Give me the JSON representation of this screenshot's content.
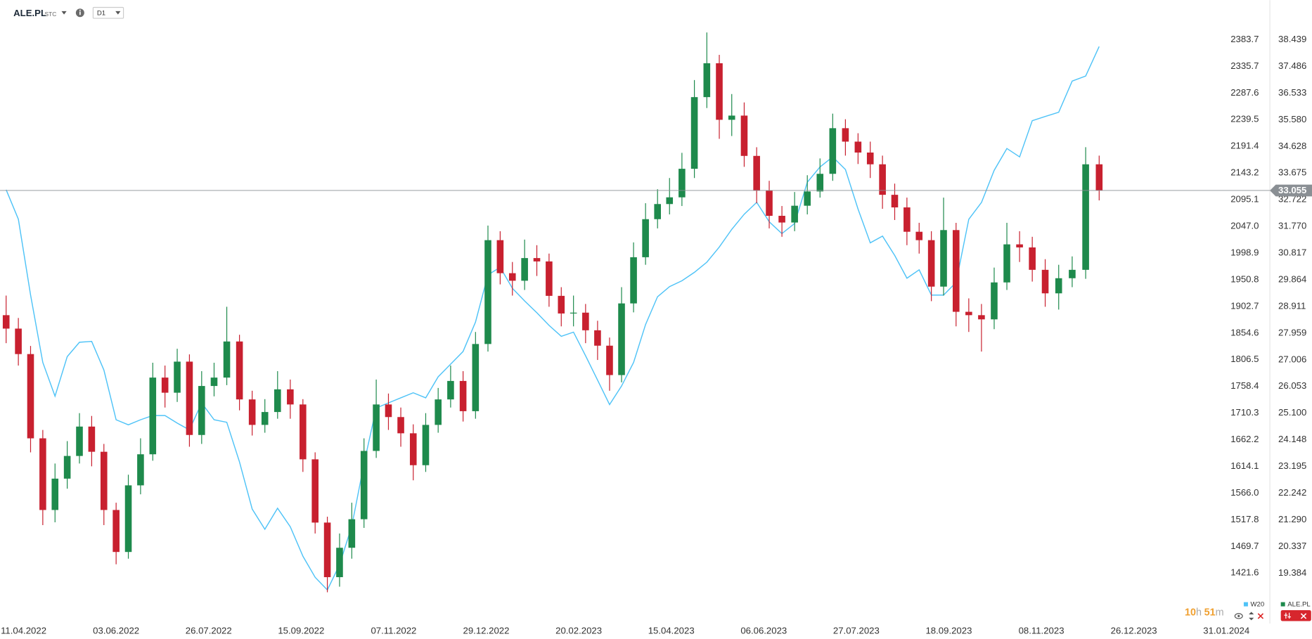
{
  "header": {
    "symbol": "ALE.PL",
    "market": "STC",
    "interval": "D1"
  },
  "countdown": [
    {
      "value": "10",
      "unit": "h"
    },
    {
      "value": "51",
      "unit": "m"
    }
  ],
  "chart_data": {
    "type": "candlestick",
    "x": [
      "01.04.2022",
      "08.04.2022",
      "15.04.2022",
      "22.04.2022",
      "29.04.2022",
      "06.05.2022",
      "13.05.2022",
      "20.05.2022",
      "27.05.2022",
      "03.06.2022",
      "10.06.2022",
      "17.06.2022",
      "24.06.2022",
      "01.07.2022",
      "08.07.2022",
      "15.07.2022",
      "22.07.2022",
      "29.07.2022",
      "05.08.2022",
      "12.08.2022",
      "19.08.2022",
      "26.08.2022",
      "02.09.2022",
      "09.09.2022",
      "16.09.2022",
      "23.09.2022",
      "30.09.2022",
      "07.10.2022",
      "14.10.2022",
      "21.10.2022",
      "28.10.2022",
      "04.11.2022",
      "11.11.2022",
      "18.11.2022",
      "25.11.2022",
      "02.12.2022",
      "09.12.2022",
      "16.12.2022",
      "23.12.2022",
      "30.12.2022",
      "06.01.2023",
      "13.01.2023",
      "20.01.2023",
      "27.01.2023",
      "03.02.2023",
      "10.02.2023",
      "17.02.2023",
      "24.02.2023",
      "03.03.2023",
      "10.03.2023",
      "17.03.2023",
      "24.03.2023",
      "31.03.2023",
      "07.04.2023",
      "14.04.2023",
      "21.04.2023",
      "28.04.2023",
      "05.05.2023",
      "12.05.2023",
      "19.05.2023",
      "26.05.2023",
      "02.06.2023",
      "09.06.2023",
      "16.06.2023",
      "23.06.2023",
      "30.06.2023",
      "07.07.2023",
      "14.07.2023",
      "21.07.2023",
      "28.07.2023",
      "04.08.2023",
      "11.08.2023",
      "18.08.2023",
      "25.08.2023",
      "01.09.2023",
      "08.09.2023",
      "15.09.2023",
      "22.09.2023",
      "29.09.2023",
      "06.10.2023",
      "13.10.2023",
      "20.10.2023",
      "27.10.2023",
      "03.11.2023",
      "10.11.2023",
      "17.11.2023",
      "24.11.2023",
      "01.12.2023",
      "08.12.2023"
    ],
    "xticks": [
      "11.04.2022",
      "03.06.2022",
      "26.07.2022",
      "15.09.2022",
      "07.11.2022",
      "29.12.2022",
      "20.02.2023",
      "15.04.2023",
      "06.06.2023",
      "27.07.2023",
      "18.09.2023",
      "08.11.2023",
      "26.12.2023",
      "31.01.2024"
    ],
    "ylim": [
      17.73,
      39.01
    ],
    "yticks": [
      38.439,
      37.486,
      36.533,
      {
        "value": 35.58,
        "label": "35.580"
      },
      34.628,
      33.675,
      32.722,
      {
        "value": 31.77,
        "label": "31.770"
      },
      30.817,
      29.864,
      28.911,
      27.959,
      27.006,
      26.053,
      {
        "value": 25.1,
        "label": "25.100"
      },
      24.148,
      23.195,
      22.242,
      {
        "value": 21.29,
        "label": "21.290"
      },
      20.337,
      19.384
    ],
    "y2lim": [
      1338.0,
      2412.5
    ],
    "y2ticks": [
      2383.7,
      2335.7,
      2287.6,
      2239.5,
      2191.4,
      2143.2,
      2095.1,
      {
        "value": 2047,
        "label": "2047.0"
      },
      1998.9,
      1950.8,
      1902.7,
      1854.6,
      1806.5,
      1758.4,
      1710.3,
      1662.2,
      1614.1,
      {
        "value": 1566,
        "label": "1566.0"
      },
      1517.8,
      1469.7,
      1421.6
    ],
    "last_price": 33.055,
    "last_price_color": "#8a8f94",
    "series": [
      {
        "name": "W20",
        "type": "line",
        "axis": "y2",
        "color": "#4fc3f7",
        "values": [
          2113.1,
          2059.9,
          1923.1,
          1801.5,
          1740.7,
          1812.2,
          1838.0,
          1839.5,
          1787.8,
          1698.2,
          1689.1,
          1698.2,
          1705.8,
          1705.8,
          1692.1,
          1679.9,
          1728.6,
          1698.2,
          1693.6,
          1622.2,
          1537.1,
          1500.6,
          1538.6,
          1505.2,
          1452.0,
          1414.0,
          1391.2,
          1436.8,
          1506.7,
          1619.1,
          1719.4,
          1728.6,
          1737.7,
          1746.8,
          1737.7,
          1775.7,
          1798.5,
          1821.3,
          1874.5,
          1959.6,
          1973.3,
          1935.3,
          1912.5,
          1891.2,
          1868.4,
          1848.6,
          1856.2,
          1813.7,
          1769.6,
          1725.5,
          1759.0,
          1801.5,
          1869.9,
          1920.1,
          1938.3,
          1948.9,
          1964.1,
          1982.4,
          2009.7,
          2041.6,
          2069.0,
          2090.3,
          2055.3,
          2034.0,
          2052.3,
          2126.8,
          2154.1,
          2172.3,
          2149.6,
          2078.1,
          2017.3,
          2029.5,
          1994.5,
          1953.5,
          1968.7,
          1923.1,
          1923.1,
          1945.9,
          2059.9,
          2090.3,
          2148.0,
          2187.5,
          2172.3,
          2237.7,
          2245.3,
          2252.9,
          2309.1,
          2318.2,
          2371.4
        ]
      },
      {
        "name": "ALE.PL",
        "type": "candlestick",
        "axis": "y",
        "color": "#1e8a4c",
        "up_color": "#1e8a4c",
        "down_color": "#c8202f",
        "open": [
          28.6,
          28.12,
          27.21,
          24.2,
          21.64,
          22.76,
          23.57,
          24.62,
          23.72,
          21.64,
          20.14,
          22.52,
          23.63,
          26.37,
          25.83,
          26.94,
          24.32,
          26.07,
          26.37,
          27.66,
          25.59,
          24.68,
          25.14,
          25.95,
          25.41,
          23.45,
          21.19,
          19.24,
          20.29,
          21.31,
          23.75,
          25.41,
          24.96,
          24.38,
          23.24,
          24.68,
          25.59,
          26.25,
          25.17,
          27.57,
          31.28,
          30.1,
          29.83,
          30.64,
          30.52,
          29.29,
          28.66,
          28.69,
          28.06,
          27.51,
          26.46,
          29.02,
          30.67,
          32.03,
          32.57,
          32.81,
          33.83,
          36.39,
          37.6,
          35.58,
          35.73,
          34.29,
          33.05,
          32.15,
          31.91,
          32.51,
          33.02,
          33.65,
          35.28,
          34.8,
          34.41,
          33.99,
          32.9,
          32.45,
          31.58,
          31.28,
          29.62,
          31.64,
          28.72,
          28.6,
          28.45,
          29.77,
          31.13,
          31.02,
          30.22,
          29.38,
          29.92,
          30.22,
          33.99
        ],
        "high": [
          29.3,
          28.5,
          27.5,
          24.5,
          23.3,
          24.1,
          25.1,
          25.0,
          24.0,
          21.9,
          22.9,
          24.2,
          26.9,
          26.8,
          27.4,
          27.2,
          26.6,
          26.9,
          28.9,
          27.9,
          25.9,
          25.6,
          26.6,
          26.3,
          25.6,
          23.7,
          21.4,
          20.8,
          21.9,
          24.2,
          26.3,
          25.8,
          25.3,
          24.7,
          25.1,
          26.0,
          26.8,
          26.6,
          28.0,
          31.8,
          31.6,
          30.5,
          31.3,
          31.1,
          30.8,
          29.6,
          29.3,
          29.0,
          28.4,
          27.8,
          29.6,
          31.2,
          32.6,
          33.1,
          33.5,
          34.4,
          37.0,
          38.7,
          37.9,
          36.5,
          36.2,
          34.6,
          33.4,
          32.5,
          33.0,
          33.6,
          34.2,
          35.8,
          35.6,
          35.1,
          34.8,
          34.3,
          33.3,
          32.8,
          31.9,
          31.6,
          32.8,
          31.9,
          29.2,
          29.0,
          30.3,
          31.9,
          31.6,
          31.4,
          30.6,
          30.4,
          30.7,
          34.6,
          34.3
        ],
        "low": [
          27.6,
          26.8,
          23.7,
          21.1,
          21.2,
          22.4,
          23.3,
          23.2,
          21.1,
          19.7,
          19.9,
          22.2,
          23.4,
          25.3,
          25.5,
          23.9,
          24.0,
          25.7,
          26.1,
          25.2,
          24.3,
          24.4,
          24.9,
          24.9,
          23.0,
          20.8,
          18.7,
          18.9,
          19.9,
          21.0,
          23.5,
          24.5,
          23.9,
          22.7,
          23.0,
          24.4,
          25.3,
          24.8,
          24.9,
          27.3,
          29.7,
          29.3,
          29.5,
          30.0,
          28.9,
          28.2,
          28.2,
          27.6,
          27.0,
          25.9,
          26.2,
          28.7,
          30.4,
          31.7,
          32.2,
          32.5,
          33.5,
          36.0,
          34.9,
          35.0,
          33.9,
          32.6,
          31.7,
          31.4,
          31.6,
          32.2,
          32.8,
          33.4,
          34.3,
          34.0,
          33.5,
          32.4,
          32.0,
          31.1,
          30.8,
          29.1,
          29.3,
          28.2,
          28.0,
          27.3,
          28.1,
          29.5,
          30.5,
          29.8,
          28.9,
          28.8,
          29.6,
          29.9,
          32.7
        ],
        "close": [
          28.12,
          27.21,
          24.2,
          21.64,
          22.76,
          23.57,
          24.62,
          23.72,
          21.64,
          20.14,
          22.52,
          23.63,
          26.37,
          25.83,
          26.94,
          24.32,
          26.07,
          26.37,
          27.66,
          25.59,
          24.68,
          25.14,
          25.95,
          25.41,
          23.45,
          21.19,
          19.24,
          20.29,
          21.31,
          23.75,
          25.41,
          24.96,
          24.38,
          23.24,
          24.68,
          25.59,
          26.25,
          25.17,
          27.57,
          31.28,
          30.1,
          29.83,
          30.64,
          30.52,
          29.29,
          28.66,
          28.69,
          28.06,
          27.51,
          26.46,
          29.02,
          30.67,
          32.03,
          32.57,
          32.81,
          33.83,
          36.39,
          37.6,
          35.58,
          35.73,
          34.29,
          33.05,
          32.15,
          31.91,
          32.51,
          33.02,
          33.65,
          35.28,
          34.8,
          34.41,
          33.99,
          32.9,
          32.45,
          31.58,
          31.28,
          29.62,
          31.64,
          28.72,
          28.6,
          28.45,
          29.77,
          31.13,
          31.02,
          30.22,
          29.38,
          29.92,
          30.22,
          33.99,
          33.055
        ]
      }
    ]
  }
}
